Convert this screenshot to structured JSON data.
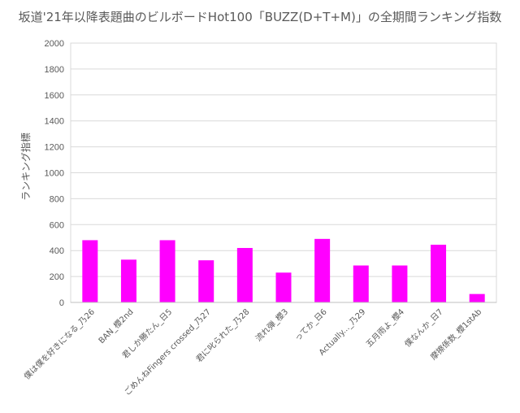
{
  "chart_data": {
    "type": "bar",
    "title": "坂道'21年以降表題曲のビルボードHot100「BUZZ(D+T+M)」の全期間ランキング指数",
    "xlabel": "",
    "ylabel": "ランキング指標",
    "ylim": [
      0,
      2000
    ],
    "yticks": [
      0,
      200,
      400,
      600,
      800,
      1000,
      1200,
      1400,
      1600,
      1800,
      2000
    ],
    "grid": true,
    "bar_color": "#FF00FF",
    "categories": [
      "僕は僕を好きになる_乃26",
      "BAN_櫻2nd",
      "君しか勝たん_日5",
      "ごめんねFingers crossed_乃27",
      "君に叱られた_乃28",
      "流れ弾_櫻3",
      "ってか_日6",
      "Actually..._乃29",
      "五月雨よ_櫻4",
      "僕なんか_日7",
      "摩擦係数_櫻1stAb"
    ],
    "values": [
      480,
      330,
      480,
      325,
      420,
      230,
      490,
      285,
      285,
      445,
      65
    ]
  }
}
